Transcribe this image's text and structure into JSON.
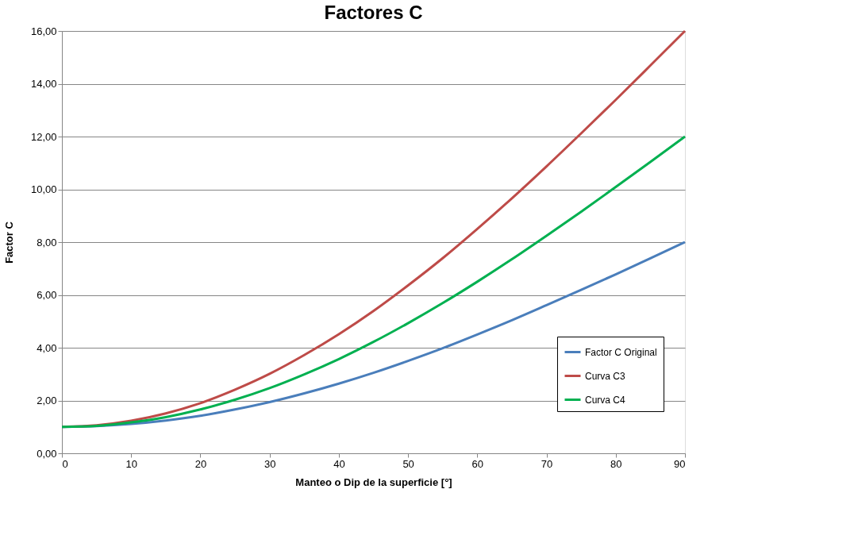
{
  "chart_data": {
    "type": "line",
    "title": "Factores C",
    "xlabel": "Manteo o Dip de la superficie [°]",
    "ylabel": "Factor C",
    "x": [
      0,
      5,
      10,
      15,
      20,
      25,
      30,
      35,
      40,
      45,
      50,
      55,
      60,
      65,
      70,
      75,
      80,
      85,
      90
    ],
    "xlim": [
      0,
      90
    ],
    "xticks": [
      0,
      10,
      20,
      30,
      40,
      50,
      60,
      70,
      80,
      90
    ],
    "ylim": [
      0,
      16
    ],
    "yticks": [
      {
        "value": 0,
        "label": "0,00"
      },
      {
        "value": 2,
        "label": "2,00"
      },
      {
        "value": 4,
        "label": "4,00"
      },
      {
        "value": 6,
        "label": "6,00"
      },
      {
        "value": 8,
        "label": "8,00"
      },
      {
        "value": 10,
        "label": "10,00"
      },
      {
        "value": 12,
        "label": "12,00"
      },
      {
        "value": 14,
        "label": "14,00"
      },
      {
        "value": 16,
        "label": "16,00"
      }
    ],
    "grid": "y",
    "legend": "bottom right",
    "marker": "none",
    "line_style": "solid",
    "series": [
      {
        "name": "Factor C Original",
        "color": "#4a7ebb",
        "values": [
          1.0,
          1.03,
          1.11,
          1.24,
          1.42,
          1.66,
          1.94,
          2.27,
          2.64,
          3.05,
          3.5,
          3.98,
          4.5,
          5.04,
          5.61,
          6.19,
          6.78,
          7.39,
          8.0
        ]
      },
      {
        "name": "Curva C3",
        "color": "#be4b48",
        "values": [
          1.0,
          1.06,
          1.23,
          1.51,
          1.9,
          2.41,
          3.01,
          3.72,
          4.51,
          5.39,
          6.36,
          7.39,
          8.5,
          9.66,
          10.87,
          12.12,
          13.39,
          14.69,
          16.0
        ]
      },
      {
        "name": "Curva C4",
        "color": "#00b050",
        "values": [
          1.0,
          1.04,
          1.17,
          1.37,
          1.66,
          2.03,
          2.47,
          2.99,
          3.57,
          4.22,
          4.93,
          5.69,
          6.5,
          7.35,
          8.24,
          9.15,
          10.09,
          11.04,
          12.0
        ]
      }
    ]
  }
}
